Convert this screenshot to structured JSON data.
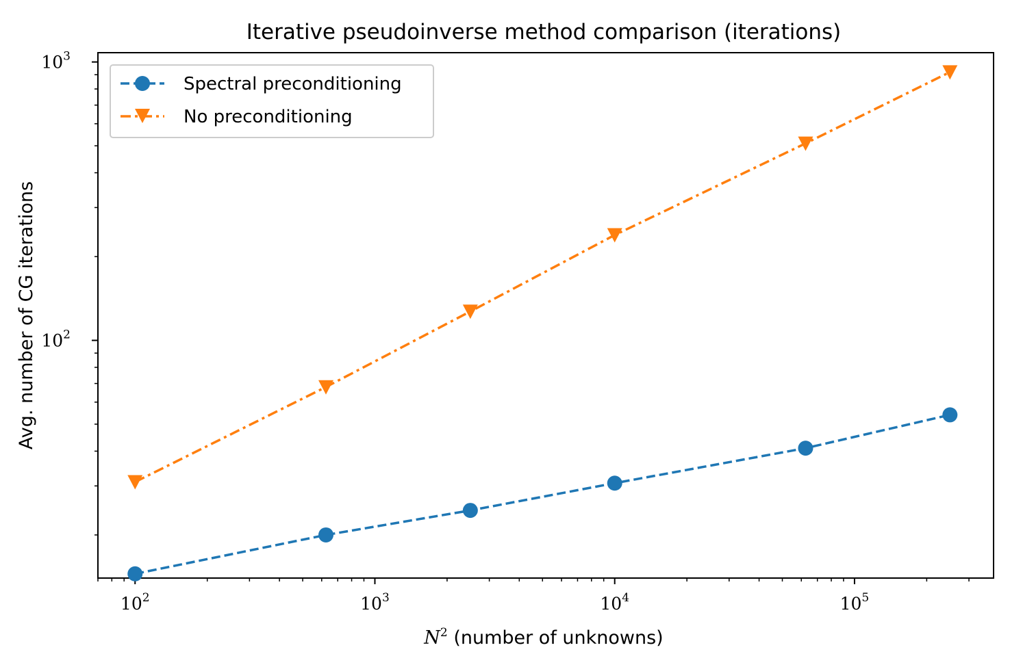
{
  "chart_data": {
    "type": "line",
    "title": "Iterative pseudoinverse method comparison (iterations)",
    "xlabel_math": "N",
    "xlabel_sup": "2",
    "xlabel_text": " (number of unknowns)",
    "ylabel": "Avg. number of CG iterations",
    "xscale": "log",
    "yscale": "log",
    "xlim": [
      70,
      380000
    ],
    "ylim": [
      14,
      1080
    ],
    "x_ticks": [
      {
        "value": 100,
        "base": "10",
        "exp": "2"
      },
      {
        "value": 1000,
        "base": "10",
        "exp": "3"
      },
      {
        "value": 10000,
        "base": "10",
        "exp": "4"
      },
      {
        "value": 100000,
        "base": "10",
        "exp": "5"
      }
    ],
    "y_ticks": [
      {
        "value": 100,
        "base": "10",
        "exp": "2"
      },
      {
        "value": 1000,
        "base": "10",
        "exp": "3"
      }
    ],
    "grid": false,
    "legend_position": "upper-left",
    "x": [
      100,
      625,
      2500,
      10000,
      62500,
      250000
    ],
    "series": [
      {
        "name": "Spectral preconditioning",
        "values": [
          14.5,
          20,
          24.5,
          30.7,
          41,
          54
        ],
        "color": "#1f77b4",
        "marker": "circle",
        "linestyle": "dashed"
      },
      {
        "name": "No preconditioning",
        "values": [
          31,
          68,
          127,
          239,
          510,
          920
        ],
        "color": "#ff7f0e",
        "marker": "triangle-down",
        "linestyle": "dashdot"
      }
    ]
  }
}
